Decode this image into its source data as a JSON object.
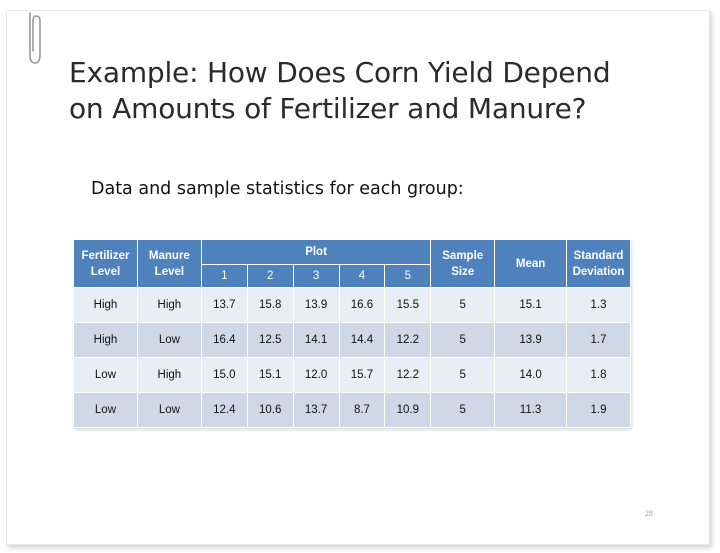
{
  "title_lines": [
    "Example: How Does Corn Yield Depend",
    "on Amounts of Fertilizer and Manure?"
  ],
  "subtitle": "Data and sample statistics for each group:",
  "table": {
    "headers": {
      "fertilizer_level": "Fertilizer Level",
      "manure_level": "Manure Level",
      "plot": "Plot",
      "sample_size": "Sample Size",
      "mean": "Mean",
      "std_dev": "Standard Deviation"
    },
    "plot_numbers": [
      "1",
      "2",
      "3",
      "4",
      "5"
    ],
    "rows": [
      {
        "fertilizer": "High",
        "manure": "High",
        "plots": [
          "13.7",
          "15.8",
          "13.9",
          "16.6",
          "15.5"
        ],
        "n": "5",
        "mean": "15.1",
        "sd": "1.3"
      },
      {
        "fertilizer": "High",
        "manure": "Low",
        "plots": [
          "16.4",
          "12.5",
          "14.1",
          "14.4",
          "12.2"
        ],
        "n": "5",
        "mean": "13.9",
        "sd": "1.7"
      },
      {
        "fertilizer": "Low",
        "manure": "High",
        "plots": [
          "15.0",
          "15.1",
          "12.0",
          "15.7",
          "12.2"
        ],
        "n": "5",
        "mean": "14.0",
        "sd": "1.8"
      },
      {
        "fertilizer": "Low",
        "manure": "Low",
        "plots": [
          "12.4",
          "10.6",
          "13.7",
          "8.7",
          "10.9"
        ],
        "n": "5",
        "mean": "11.3",
        "sd": "1.9"
      }
    ]
  },
  "page_number": "28",
  "colors": {
    "header_blue": "#4f81bd",
    "row_light": "#e9edf4",
    "row_dark": "#d0d8e8"
  },
  "icons": {
    "clip": "paperclip-icon"
  }
}
